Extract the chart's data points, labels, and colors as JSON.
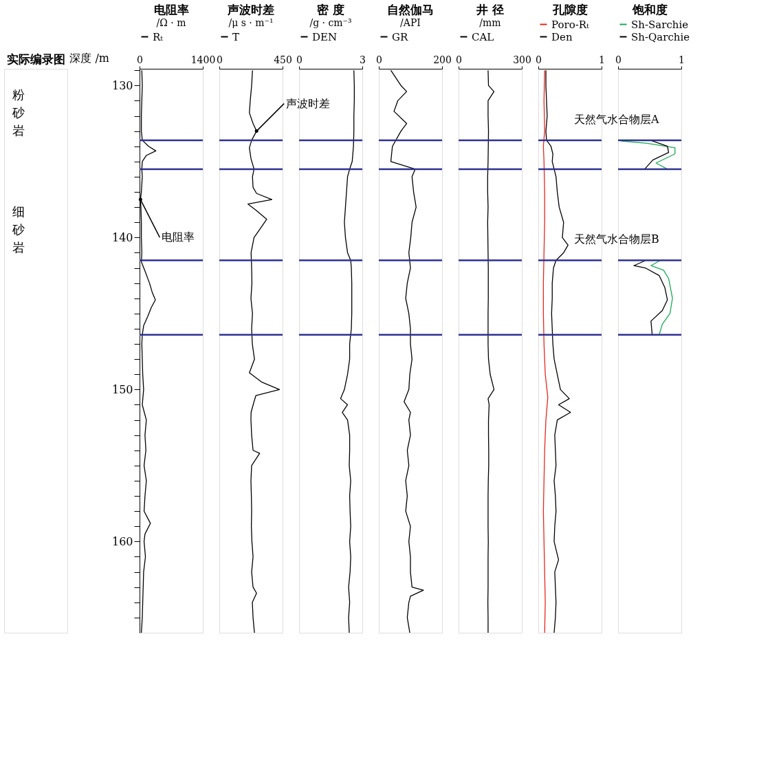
{
  "chart_data": [
    {
      "type": "other",
      "title": "实际编录图",
      "annotations": [
        "粉砂岩",
        "细砂岩"
      ]
    },
    {
      "type": "line",
      "orientation": "horizontal",
      "title": "电阻率",
      "subtitle": "/Ω · m",
      "ylabel": "深度 /m",
      "legend": "top",
      "xlim": [
        0,
        1400
      ],
      "xticks": [
        0,
        1400
      ],
      "ylim": [
        166,
        128.9
      ],
      "yticks": [
        {
          "value": 129,
          "label": null
        },
        130,
        {
          "value": 131,
          "label": null
        },
        {
          "value": 132,
          "label": null
        },
        {
          "value": 133,
          "label": null
        },
        {
          "value": 134,
          "label": null
        },
        {
          "value": 135,
          "label": null
        },
        {
          "value": 136,
          "label": null
        },
        {
          "value": 137,
          "label": null
        },
        {
          "value": 138,
          "label": null
        },
        {
          "value": 139,
          "label": null
        },
        140,
        {
          "value": 141,
          "label": null
        },
        {
          "value": 142,
          "label": null
        },
        {
          "value": 143,
          "label": null
        },
        {
          "value": 144,
          "label": null
        },
        {
          "value": 145,
          "label": null
        },
        {
          "value": 146,
          "label": null
        },
        {
          "value": 147,
          "label": null
        },
        {
          "value": 148,
          "label": null
        },
        {
          "value": 149,
          "label": null
        },
        150,
        {
          "value": 151,
          "label": null
        },
        {
          "value": 152,
          "label": null
        },
        {
          "value": 153,
          "label": null
        },
        {
          "value": 154,
          "label": null
        },
        {
          "value": 155,
          "label": null
        },
        {
          "value": 156,
          "label": null
        },
        {
          "value": 157,
          "label": null
        },
        {
          "value": 158,
          "label": null
        },
        {
          "value": 159,
          "label": null
        },
        160,
        {
          "value": 161,
          "label": null
        },
        {
          "value": 162,
          "label": null
        },
        {
          "value": 163,
          "label": null
        },
        {
          "value": 164,
          "label": null
        },
        {
          "value": 165,
          "label": null
        }
      ],
      "series": [
        {
          "name": "Rₜ",
          "color": "#000000",
          "x": [
            129,
            130,
            131,
            132,
            133,
            133.6,
            134,
            134.3,
            134.6,
            135,
            135.5,
            136,
            137,
            137.5,
            138,
            139,
            140,
            141,
            141.6,
            142.2,
            143,
            143.6,
            144.1,
            144.6,
            145.2,
            145.8,
            146.4,
            147,
            148,
            149,
            150,
            151,
            152,
            153,
            154,
            155,
            156,
            157,
            158,
            158.8,
            159.5,
            160,
            161,
            162,
            163,
            164,
            165,
            166
          ],
          "values": [
            50,
            60,
            50,
            40,
            40,
            60,
            200,
            360,
            150,
            60,
            50,
            60,
            40,
            20,
            30,
            40,
            40,
            50,
            40,
            120,
            220,
            280,
            350,
            260,
            180,
            90,
            60,
            50,
            60,
            70,
            90,
            60,
            150,
            120,
            140,
            100,
            150,
            120,
            100,
            240,
            120,
            100,
            130,
            90,
            80,
            70,
            60,
            40
          ]
        }
      ],
      "ref_lines": [
        {
          "axis": "y",
          "value": 133.6,
          "color": "#2e3192"
        },
        {
          "axis": "y",
          "value": 135.5,
          "color": "#2e3192"
        },
        {
          "axis": "y",
          "value": 141.5,
          "color": "#2e3192"
        },
        {
          "axis": "y",
          "value": 146.4,
          "color": "#2e3192"
        }
      ],
      "annotations": [
        {
          "text": "电阻率",
          "x": 20,
          "y": 137.5
        }
      ]
    },
    {
      "type": "line",
      "orientation": "horizontal",
      "title": "声波时差",
      "subtitle": "/μ s · m⁻¹",
      "legend": "top",
      "tick_labels": "x",
      "xlim": [
        0,
        450
      ],
      "xticks": [
        0,
        450
      ],
      "ylim": [
        166,
        128.9
      ],
      "yticks": [
        130,
        140,
        150,
        160
      ],
      "series": [
        {
          "name": "T",
          "color": "#000000",
          "x": [
            129,
            130,
            131,
            131.8,
            132.5,
            133,
            133.6,
            134.1,
            134.8,
            135.5,
            136,
            136.7,
            137.1,
            137.5,
            137.8,
            138.2,
            138.8,
            139.3,
            140,
            141,
            142,
            143,
            144,
            145,
            146,
            147,
            148,
            148.9,
            149.5,
            150,
            150.4,
            150.8,
            151.5,
            152,
            153,
            154,
            154.2,
            155,
            156,
            157,
            158,
            159,
            160,
            161,
            162,
            163,
            163.4,
            164,
            165,
            166
          ],
          "values": [
            236,
            230,
            220,
            214,
            240,
            265,
            230,
            214,
            225,
            247,
            236,
            240,
            265,
            374,
            204,
            260,
            337,
            300,
            247,
            226,
            230,
            232,
            225,
            236,
            230,
            235,
            250,
            214,
            300,
            428,
            260,
            247,
            226,
            225,
            230,
            240,
            287,
            230,
            225,
            228,
            230,
            228,
            232,
            240,
            230,
            240,
            265,
            235,
            240,
            250
          ]
        }
      ],
      "ref_lines": [
        {
          "axis": "y",
          "value": 133.6,
          "color": "#2e3192"
        },
        {
          "axis": "y",
          "value": 135.5,
          "color": "#2e3192"
        },
        {
          "axis": "y",
          "value": 141.5,
          "color": "#2e3192"
        },
        {
          "axis": "y",
          "value": 146.4,
          "color": "#2e3192"
        }
      ],
      "annotations": [
        {
          "text": "声波时差",
          "x": 265,
          "y": 133
        }
      ]
    },
    {
      "type": "line",
      "orientation": "horizontal",
      "title": "密 度",
      "subtitle": "/g · cm⁻³",
      "legend": "top",
      "tick_labels": "x",
      "xlim": [
        0,
        3
      ],
      "xticks": [
        0,
        3
      ],
      "ylim": [
        166,
        128.9
      ],
      "yticks": [
        130,
        140,
        150,
        160
      ],
      "series": [
        {
          "name": "DEN",
          "color": "#000000",
          "x": [
            129,
            130,
            131,
            132,
            133,
            134,
            135,
            135.5,
            136,
            137,
            138,
            139,
            140,
            141,
            141.5,
            142,
            143,
            144,
            145,
            146,
            147,
            148,
            149,
            150,
            150.6,
            151,
            151.5,
            152,
            153,
            154,
            155,
            156,
            157,
            158,
            159,
            160,
            161,
            162,
            163,
            164,
            165,
            166
          ],
          "values": [
            2.6,
            2.62,
            2.62,
            2.6,
            2.6,
            2.58,
            2.52,
            2.4,
            2.3,
            2.25,
            2.2,
            2.15,
            2.2,
            2.3,
            2.45,
            2.48,
            2.5,
            2.5,
            2.5,
            2.48,
            2.4,
            2.4,
            2.3,
            2.15,
            1.97,
            2.3,
            2.05,
            2.3,
            2.4,
            2.4,
            2.38,
            2.45,
            2.4,
            2.42,
            2.45,
            2.4,
            2.45,
            2.42,
            2.35,
            2.4,
            2.35,
            2.38
          ]
        }
      ],
      "ref_lines": [
        {
          "axis": "y",
          "value": 133.6,
          "color": "#2e3192"
        },
        {
          "axis": "y",
          "value": 135.5,
          "color": "#2e3192"
        },
        {
          "axis": "y",
          "value": 141.5,
          "color": "#2e3192"
        },
        {
          "axis": "y",
          "value": 146.4,
          "color": "#2e3192"
        }
      ]
    },
    {
      "type": "line",
      "orientation": "horizontal",
      "title": "自然伽马",
      "subtitle": "/API",
      "legend": "top",
      "tick_labels": "x",
      "xlim": [
        0,
        200
      ],
      "xticks": [
        0,
        200
      ],
      "ylim": [
        166,
        128.9
      ],
      "yticks": [
        130,
        140,
        150,
        160
      ],
      "series": [
        {
          "name": "GR",
          "color": "#000000",
          "x": [
            129,
            130,
            130.4,
            131,
            131.7,
            132.5,
            133,
            134,
            135,
            135.5,
            136,
            137,
            138,
            139,
            140,
            141,
            142,
            143,
            144,
            145,
            146,
            147,
            148,
            149,
            150,
            150.8,
            151.5,
            152,
            153,
            154,
            155,
            156,
            157,
            158,
            159,
            160,
            161,
            162,
            163,
            163.2,
            163.6,
            164,
            165,
            166
          ],
          "values": [
            38,
            70,
            88,
            60,
            48,
            88,
            70,
            43,
            38,
            115,
            105,
            110,
            118,
            105,
            101,
            95,
            100,
            90,
            85,
            95,
            100,
            100,
            105,
            98,
            95,
            80,
            100,
            95,
            100,
            90,
            95,
            85,
            90,
            85,
            100,
            95,
            100,
            100,
            105,
            141,
            100,
            95,
            90,
            98
          ]
        }
      ],
      "ref_lines": [
        {
          "axis": "y",
          "value": 133.6,
          "color": "#2e3192"
        },
        {
          "axis": "y",
          "value": 135.5,
          "color": "#2e3192"
        },
        {
          "axis": "y",
          "value": 141.5,
          "color": "#2e3192"
        },
        {
          "axis": "y",
          "value": 146.4,
          "color": "#2e3192"
        }
      ]
    },
    {
      "type": "line",
      "orientation": "horizontal",
      "title": "井 径",
      "subtitle": "/mm",
      "legend": "top",
      "tick_labels": "x",
      "xlim": [
        0,
        300
      ],
      "xticks": [
        0,
        300
      ],
      "ylim": [
        166,
        128.9
      ],
      "yticks": [
        130,
        140,
        150,
        160
      ],
      "series": [
        {
          "name": "CAL",
          "color": "#000000",
          "x": [
            129,
            130,
            130.4,
            131,
            132,
            133,
            134,
            135,
            136,
            137,
            138,
            139,
            140,
            141,
            142,
            143,
            144,
            145,
            146,
            147,
            148,
            149,
            150,
            150.6,
            151,
            152,
            153,
            154,
            155,
            156,
            157,
            158,
            159,
            160,
            161,
            162,
            163,
            164,
            165,
            166
          ],
          "values": [
            140,
            142,
            168,
            140,
            140,
            142,
            141,
            140,
            138,
            138,
            140,
            138,
            139,
            140,
            141,
            141,
            141,
            140,
            140,
            140,
            142,
            150,
            168,
            140,
            145,
            142,
            142,
            143,
            143,
            141,
            140,
            140,
            140,
            141,
            140,
            140,
            140,
            139,
            140,
            140
          ]
        }
      ],
      "ref_lines": [
        {
          "axis": "y",
          "value": 133.6,
          "color": "#2e3192"
        },
        {
          "axis": "y",
          "value": 135.5,
          "color": "#2e3192"
        },
        {
          "axis": "y",
          "value": 141.5,
          "color": "#2e3192"
        },
        {
          "axis": "y",
          "value": 146.4,
          "color": "#2e3192"
        }
      ]
    },
    {
      "type": "line",
      "orientation": "horizontal",
      "title": "孔隙度",
      "legend": "top",
      "tick_labels": "x",
      "xlim": [
        0,
        1
      ],
      "xticks": [
        0,
        1
      ],
      "ylim": [
        166,
        128.9
      ],
      "yticks": [
        130,
        140,
        150,
        160
      ],
      "series": [
        {
          "name": "Poro-Rₜ",
          "color": "#e8261c",
          "x": [
            129,
            131,
            133,
            134,
            135,
            137,
            139,
            141,
            143,
            145,
            147,
            149,
            150.5,
            152,
            154,
            156,
            158,
            160,
            162,
            164,
            166
          ],
          "values": [
            0.1,
            0.09,
            0.1,
            0.08,
            0.09,
            0.1,
            0.1,
            0.09,
            0.08,
            0.08,
            0.09,
            0.11,
            0.15,
            0.12,
            0.1,
            0.09,
            0.08,
            0.09,
            0.1,
            0.11,
            0.1
          ]
        },
        {
          "name": "Den",
          "color": "#000000",
          "x": [
            129,
            130,
            131,
            132,
            133,
            133.6,
            134,
            134.5,
            135,
            135.5,
            136,
            137,
            138,
            139,
            140,
            140.5,
            141,
            141.5,
            142,
            143,
            144,
            145,
            146,
            147,
            148,
            149,
            150,
            150.6,
            151,
            151.5,
            152,
            153,
            154,
            155,
            156,
            157,
            158,
            159,
            160,
            161.2,
            162,
            163,
            164,
            165,
            166
          ],
          "values": [
            0.12,
            0.12,
            0.13,
            0.14,
            0.12,
            0.13,
            0.2,
            0.23,
            0.22,
            0.25,
            0.28,
            0.3,
            0.33,
            0.4,
            0.38,
            0.47,
            0.4,
            0.28,
            0.24,
            0.22,
            0.22,
            0.21,
            0.22,
            0.23,
            0.25,
            0.3,
            0.35,
            0.49,
            0.32,
            0.51,
            0.3,
            0.26,
            0.27,
            0.28,
            0.25,
            0.27,
            0.28,
            0.26,
            0.25,
            0.32,
            0.26,
            0.27,
            0.28,
            0.27,
            0.25
          ]
        }
      ],
      "ref_lines": [
        {
          "axis": "y",
          "value": 133.6,
          "color": "#2e3192",
          "label": "天然气水合物层A"
        },
        {
          "axis": "y",
          "value": 135.5,
          "color": "#2e3192"
        },
        {
          "axis": "y",
          "value": 141.5,
          "color": "#2e3192",
          "label": "天然气水合物层B"
        },
        {
          "axis": "y",
          "value": 146.4,
          "color": "#2e3192"
        }
      ]
    },
    {
      "type": "line",
      "orientation": "horizontal",
      "title": "饱和度",
      "legend": "top",
      "tick_labels": "x",
      "xlim": [
        0,
        1
      ],
      "xticks": [
        0,
        1
      ],
      "ylim": [
        166,
        128.9
      ],
      "yticks": [
        130,
        140,
        150,
        160
      ],
      "series": [
        {
          "name": "Sh-Sarchie",
          "color": "#1aaa55",
          "x": [
            133.65,
            133.8,
            134.1,
            134.5,
            135.1,
            135.5,
            140,
            141.5,
            141.85,
            142.15,
            142.7,
            144,
            145,
            145.7,
            146.4
          ],
          "values": [
            0.05,
            0.46,
            0.9,
            0.9,
            0.6,
            0.78,
            null,
            0.67,
            0.52,
            0.72,
            0.8,
            0.86,
            0.82,
            0.7,
            0.65
          ]
        },
        {
          "name": "Sh-Qarchie",
          "color": "#000000",
          "x": [
            133.6,
            134,
            134.4,
            134.9,
            135.5,
            140,
            141.5,
            141.85,
            142,
            142.5,
            143.3,
            144.1,
            144.8,
            145.5,
            146.4
          ],
          "values": [
            0.51,
            0.78,
            0.8,
            0.55,
            0.42,
            null,
            0.44,
            0.25,
            0.43,
            0.65,
            0.74,
            0.78,
            0.7,
            0.52,
            0.54
          ]
        }
      ],
      "ref_lines": [
        {
          "axis": "y",
          "value": 133.6,
          "color": "#2e3192"
        },
        {
          "axis": "y",
          "value": 135.5,
          "color": "#2e3192"
        },
        {
          "axis": "y",
          "value": 141.5,
          "color": "#2e3192"
        },
        {
          "axis": "y",
          "value": 146.4,
          "color": "#2e3192"
        }
      ]
    }
  ]
}
